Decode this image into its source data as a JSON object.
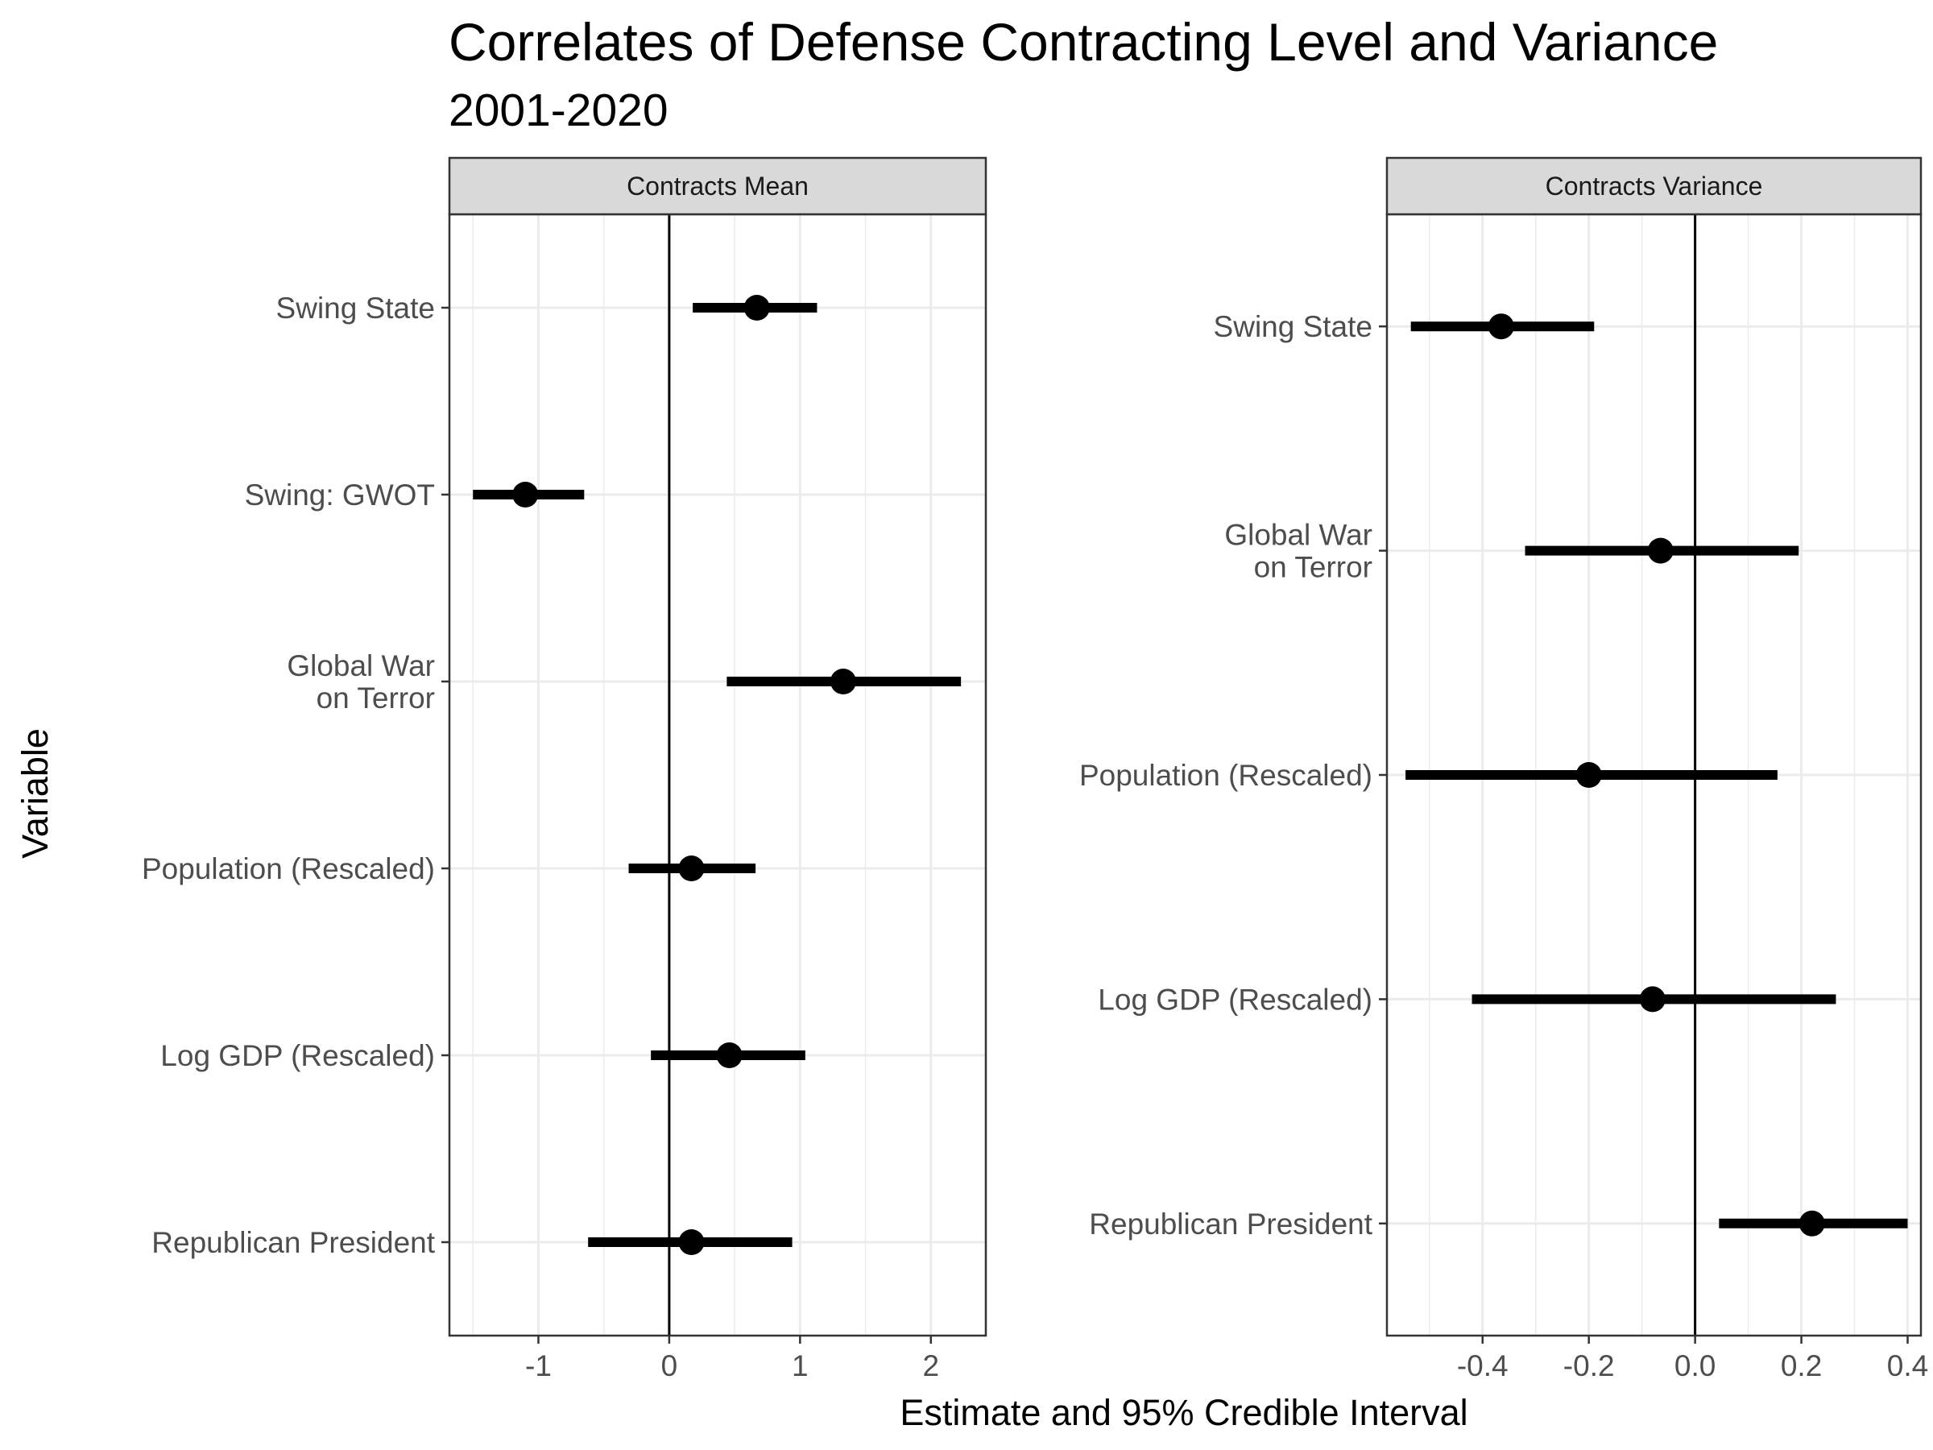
{
  "title": "Correlates of Defense Contracting Level and Variance",
  "subtitle": "2001-2020",
  "xlabel": "Estimate and 95% Credible Interval",
  "ylabel": "Variable",
  "colors": {
    "point": "#000000",
    "panel_border": "#333333",
    "strip_fill": "#d9d9d9",
    "grid": "#ebebeb",
    "tick_label": "#4d4d4d"
  },
  "chart_data": [
    {
      "type": "scatter",
      "facet": "Contracts Mean",
      "categories": [
        "Swing State",
        "Swing: GWOT",
        "Global War\non Terror",
        "Population (Rescaled)",
        "Log GDP (Rescaled)",
        "Republican President"
      ],
      "estimate": [
        0.67,
        -1.1,
        1.33,
        0.17,
        0.46,
        0.17
      ],
      "lower": [
        0.18,
        -1.5,
        0.44,
        -0.31,
        -0.14,
        -0.62
      ],
      "upper": [
        1.13,
        -0.65,
        2.23,
        0.66,
        1.04,
        0.94
      ],
      "xlim": [
        -1.68,
        2.42
      ],
      "xticks": [
        -1,
        0,
        1,
        2
      ],
      "xtick_labels": [
        "-1",
        "0",
        "1",
        "2"
      ],
      "reference_line": 0,
      "grid": true
    },
    {
      "type": "scatter",
      "facet": "Contracts Variance",
      "categories": [
        "Swing State",
        "Global War\non Terror",
        "Population (Rescaled)",
        "Log GDP (Rescaled)",
        "Republican President"
      ],
      "estimate": [
        -0.365,
        -0.065,
        -0.2,
        -0.08,
        0.22
      ],
      "lower": [
        -0.535,
        -0.32,
        -0.545,
        -0.42,
        0.045
      ],
      "upper": [
        -0.19,
        0.195,
        0.155,
        0.265,
        0.4
      ],
      "xlim": [
        -0.58,
        0.425
      ],
      "xticks": [
        -0.4,
        -0.2,
        0.0,
        0.2,
        0.4
      ],
      "xtick_labels": [
        "-0.4",
        "-0.2",
        "0.0",
        "0.2",
        "0.4"
      ],
      "reference_line": 0,
      "grid": true
    }
  ]
}
